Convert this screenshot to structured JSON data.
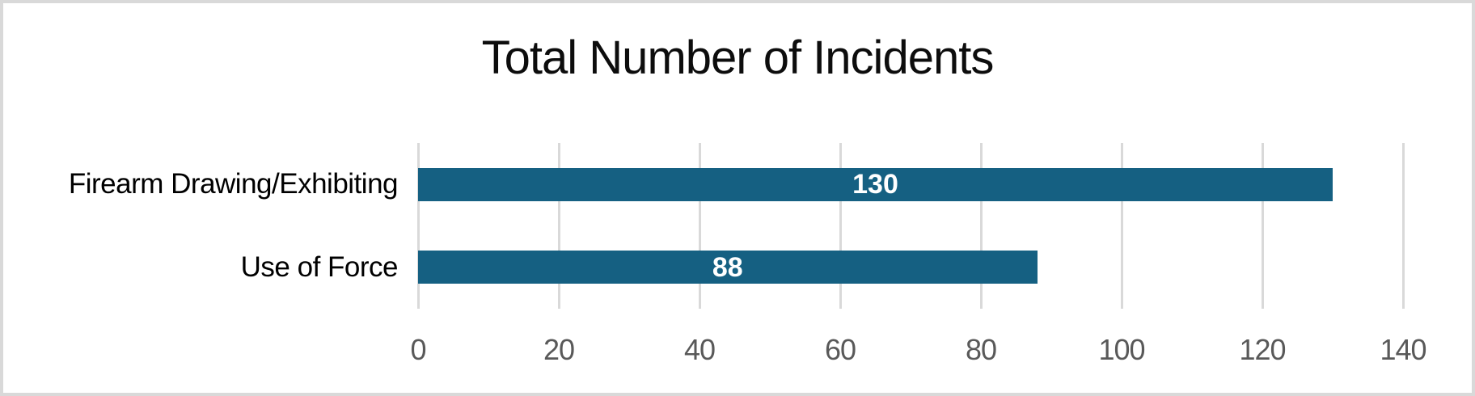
{
  "frame": {
    "background": "#FFFFFF",
    "border_color": "#D9D9D9"
  },
  "chart_data": {
    "type": "bar",
    "orientation": "horizontal",
    "title": "Total Number of Incidents",
    "categories": [
      "Firearm Drawing/Exhibiting",
      "Use of Force"
    ],
    "values": [
      130,
      88
    ],
    "data_labels": [
      "130",
      "88"
    ],
    "xlabel": "",
    "ylabel": "",
    "xlim": [
      0,
      140
    ],
    "x_ticks": [
      0,
      20,
      40,
      60,
      80,
      100,
      120,
      140
    ],
    "x_tick_labels": [
      "0",
      "20",
      "40",
      "60",
      "80",
      "100",
      "120",
      "140"
    ],
    "grid": true,
    "legend": "none",
    "colors": {
      "bar": "#156082",
      "data_label": "#FFFFFF",
      "gridline": "#D9D9D9",
      "tick_label": "#595959",
      "category_label": "#000000",
      "title": "#0D0D0D"
    }
  }
}
